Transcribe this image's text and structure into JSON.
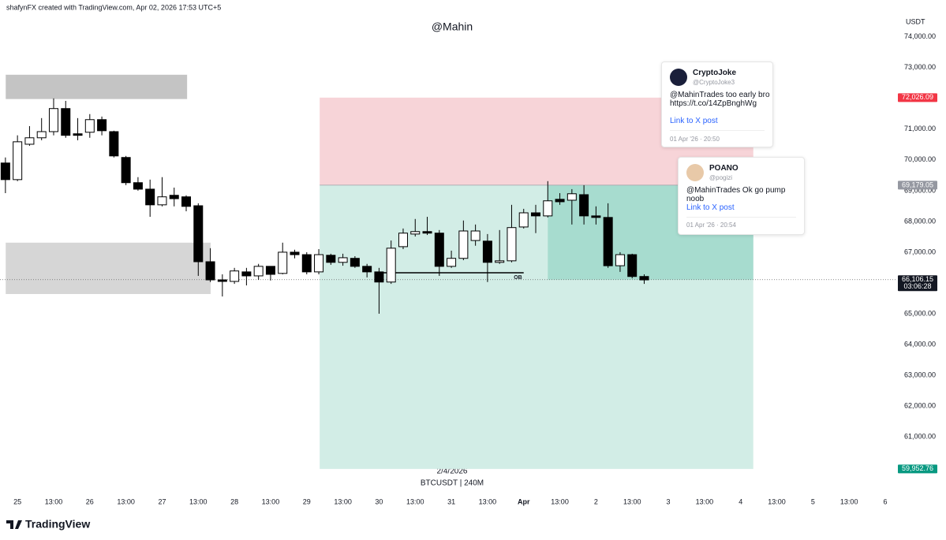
{
  "chart_data": {
    "type": "candlestick",
    "title": "@Mahin",
    "caption": "shafynFX created with TradingView.com, Apr 02, 2026 17:53 UTC+5",
    "y_unit": "USDT",
    "date_label": "2/4/2026",
    "symbol_label": "BTCUSDT | 240M",
    "up_color": "#ffffff",
    "down_color": "#000000",
    "x": [
      -4,
      0,
      4,
      8,
      12,
      16,
      20,
      24,
      28,
      32,
      36,
      40,
      44,
      48,
      52,
      56,
      60,
      64,
      68,
      72,
      76,
      80,
      84,
      88,
      92,
      96,
      100,
      104,
      108,
      112,
      116,
      120,
      124,
      128,
      132,
      136,
      140,
      144,
      148,
      152,
      156,
      160,
      164,
      168,
      172,
      176,
      180,
      184,
      188,
      192,
      196,
      200,
      204,
      208
    ],
    "open": [
      69900,
      69360,
      70510,
      70720,
      70920,
      71670,
      70850,
      70900,
      71310,
      70920,
      70080,
      69260,
      69050,
      68540,
      68850,
      68800,
      68510,
      66690,
      66100,
      66050,
      66360,
      66230,
      66540,
      66310,
      67000,
      66920,
      66360,
      66900,
      66670,
      66800,
      66540,
      66360,
      66030,
      67180,
      67590,
      67670,
      67620,
      66540,
      66800,
      67380,
      67360,
      66670,
      66720,
      67820,
      68280,
      68180,
      68720,
      68690,
      68870,
      68180,
      68130,
      66560,
      66920,
      66210
    ],
    "high": [
      70080,
      70800,
      71100,
      71360,
      72000,
      71920,
      71360,
      71490,
      71410,
      70950,
      70130,
      69440,
      69360,
      69440,
      69100,
      68850,
      68590,
      67130,
      66280,
      66490,
      66490,
      66620,
      66540,
      67310,
      67080,
      67000,
      67100,
      66950,
      66950,
      66870,
      66620,
      66490,
      67380,
      67770,
      68080,
      68150,
      67720,
      67050,
      68030,
      67900,
      67590,
      67720,
      68540,
      68410,
      68540,
      69310,
      68920,
      69050,
      69180,
      68490,
      68590,
      67000,
      66950,
      66280
    ],
    "low": [
      68920,
      69310,
      70460,
      70640,
      70800,
      70720,
      70640,
      70720,
      70800,
      70080,
      69180,
      69000,
      68150,
      68490,
      68490,
      68330,
      66230,
      66030,
      65560,
      65970,
      65920,
      66100,
      66080,
      66280,
      66800,
      66280,
      66280,
      66590,
      66560,
      66490,
      66180,
      65000,
      65970,
      67100,
      67510,
      67560,
      66230,
      66490,
      66740,
      67210,
      66030,
      66620,
      66670,
      67770,
      67620,
      68130,
      68540,
      67900,
      67900,
      67900,
      66490,
      66360,
      66150,
      65970
    ],
    "close": [
      69360,
      70590,
      70720,
      70920,
      71670,
      70800,
      70800,
      71310,
      70950,
      70130,
      69260,
      69050,
      68540,
      68800,
      68740,
      68490,
      66690,
      66100,
      66050,
      66390,
      66230,
      66540,
      66280,
      67000,
      66920,
      66360,
      66920,
      66670,
      66820,
      66540,
      66360,
      66030,
      67130,
      67620,
      67670,
      67620,
      66540,
      66800,
      67690,
      67690,
      66670,
      66720,
      67800,
      68280,
      68180,
      68670,
      68640,
      68900,
      68180,
      68130,
      66560,
      66920,
      66210,
      66100
    ],
    "xlim": [
      -5.8,
      291.4
    ],
    "ylim": [
      59180,
      75200
    ],
    "xticks": [
      {
        "value": 0,
        "label": "25"
      },
      {
        "value": 12,
        "label": "13:00"
      },
      {
        "value": 24,
        "label": "26"
      },
      {
        "value": 36,
        "label": "13:00"
      },
      {
        "value": 48,
        "label": "27"
      },
      {
        "value": 60,
        "label": "13:00"
      },
      {
        "value": 72,
        "label": "28"
      },
      {
        "value": 84,
        "label": "13:00"
      },
      {
        "value": 96,
        "label": "29"
      },
      {
        "value": 108,
        "label": "13:00"
      },
      {
        "value": 120,
        "label": "30"
      },
      {
        "value": 132,
        "label": "13:00"
      },
      {
        "value": 144,
        "label": "31"
      },
      {
        "value": 156,
        "label": "13:00"
      },
      {
        "value": 168,
        "label": "Apr"
      },
      {
        "value": 180,
        "label": "13:00"
      },
      {
        "value": 192,
        "label": "2"
      },
      {
        "value": 204,
        "label": "13:00"
      },
      {
        "value": 216,
        "label": "3"
      },
      {
        "value": 228,
        "label": "13:00"
      },
      {
        "value": 240,
        "label": "4"
      },
      {
        "value": 252,
        "label": "13:00"
      },
      {
        "value": 264,
        "label": "5"
      },
      {
        "value": 276,
        "label": "13:00"
      },
      {
        "value": 288,
        "label": "6"
      }
    ],
    "yticks": [
      {
        "value": 61000,
        "label": "61,000.00"
      },
      {
        "value": 62000,
        "label": "62,000.00"
      },
      {
        "value": 63000,
        "label": "63,000.00"
      },
      {
        "value": 64000,
        "label": "64,000.00"
      },
      {
        "value": 65000,
        "label": "65,000.00"
      },
      {
        "value": 66000,
        "label": "66,000.00"
      },
      {
        "value": 67000,
        "label": "67,000.00"
      },
      {
        "value": 68000,
        "label": "68,000.00"
      },
      {
        "value": 69000,
        "label": "69,000.00"
      },
      {
        "value": 70000,
        "label": "70,000.00"
      },
      {
        "value": 71000,
        "label": "71,000.00"
      },
      {
        "value": 72000,
        "label": "72,000.00"
      },
      {
        "value": 73000,
        "label": "73,000.00"
      },
      {
        "value": 74000,
        "label": "74,000.00"
      }
    ],
    "zones": [
      {
        "x": [
          -3.9,
          56.3
        ],
        "y": [
          71980,
          72770
        ],
        "color": "#c4c4c4"
      },
      {
        "x": [
          -3.9,
          64.1
        ],
        "y": [
          65640,
          67310
        ],
        "color": "#d6d6d6"
      }
    ],
    "position": {
      "x": [
        100.3,
        244.2
      ],
      "hit_x": 176,
      "entry": {
        "value": 69179.05,
        "label": "69,179.05"
      },
      "stop": {
        "value": 72026.09,
        "label": "72,026.09"
      },
      "target": {
        "value": 59952.76,
        "label": "59,952.76"
      }
    },
    "ob_line": {
      "label": "OB",
      "price": 66330,
      "x": [
        120,
        168
      ]
    },
    "last_price": {
      "value": 66106.15,
      "label": "66,106.15",
      "countdown": "03:06:28"
    }
  },
  "tweets": [
    {
      "name": "CryptoJoke",
      "handle": "@CryptoJoke3",
      "text": "@MahinTrades too early bro",
      "url": "https://t.co/14ZpBnghWg",
      "link": "Link to X post",
      "time": "01 Apr '26 · 20:50"
    },
    {
      "name": "POANO",
      "handle": "@pogizi",
      "text": "@MahinTrades Ok go pump noob",
      "link": "Link to X post",
      "time": "01 Apr '26 · 20:54"
    }
  ],
  "brand": "TradingView"
}
